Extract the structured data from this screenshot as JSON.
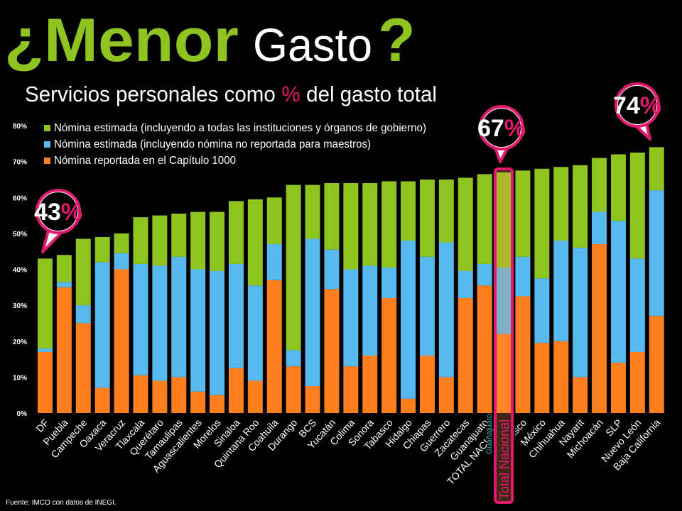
{
  "chart_data": {
    "type": "stacked_bar",
    "title": [
      "¿Menor",
      "Gasto",
      "?"
    ],
    "subtitle": [
      "Servicios personales como",
      "%",
      "del gasto total"
    ],
    "source": "Fuente: IMCO con datos de INEGI.",
    "categories": [
      "DF",
      "Puebla",
      "Campeche",
      "Oaxaca",
      "Veracruz",
      "Tlaxcala",
      "Querétaro",
      "Tamaulipas",
      "Aguascalientes",
      "Morelos",
      "Sinaloa",
      "Quintana Roo",
      "Coahuila",
      "Durango",
      "BCS",
      "Yucatán",
      "Colima",
      "Sonora",
      "Tabasco",
      "Hidalgo",
      "Chiapas",
      "Guerrero",
      "Zacatecas",
      "Guanajuato",
      "TOTAL NACIONAL",
      "Jalisco",
      "México",
      "Chihuahua",
      "Nayarit",
      "Michoacán",
      "SLP",
      "Nuevo León",
      "Baja California"
    ],
    "series": [
      {
        "name": "Nómina reportada en el Capítulo 1000",
        "color": "#ff7f1e",
        "values": [
          17,
          35,
          25,
          7,
          40,
          10.5,
          9,
          10,
          6,
          5,
          12.5,
          9,
          37,
          13,
          7.5,
          34.5,
          13,
          16,
          32,
          4,
          16,
          10,
          32,
          35.5,
          22,
          32.5,
          19.5,
          20,
          10,
          47,
          14,
          17,
          27
        ]
      },
      {
        "name": "Nómina estimada (incluyendo nómina no reportada para maestros)",
        "color": "#57b9ee",
        "values": [
          1,
          1.5,
          5,
          35,
          4.5,
          31,
          32,
          33.5,
          34,
          34.5,
          29,
          26.5,
          10,
          4.5,
          41,
          11,
          27,
          25,
          8.5,
          44,
          27.5,
          37.5,
          7.5,
          6,
          18.5,
          11,
          18,
          28,
          36,
          9,
          39.5,
          26,
          35
        ]
      },
      {
        "name": "Nómina estimada (incluyendo a todas las instituciones y órganos de gobierno)",
        "color": "#8fc320",
        "values": [
          25,
          7.5,
          18.5,
          7,
          5.5,
          13,
          14,
          12,
          16,
          16.5,
          17.5,
          24,
          13,
          46,
          15,
          18.5,
          24,
          23,
          24,
          16.5,
          21.5,
          17.5,
          26,
          25,
          26.5,
          24,
          30.5,
          20.5,
          23,
          15,
          18.5,
          29.5,
          12
        ]
      }
    ],
    "ylim": [
      0,
      80
    ],
    "yticks": [
      {
        "value": 0,
        "label": "0%"
      },
      {
        "value": 10,
        "label": "10%"
      },
      {
        "value": 20,
        "label": "20%"
      },
      {
        "value": 30,
        "label": "30%"
      },
      {
        "value": 40,
        "label": "40%"
      },
      {
        "value": 50,
        "label": "50%"
      },
      {
        "value": 60,
        "label": "60%"
      },
      {
        "value": 70,
        "label": "70%"
      },
      {
        "value": 80,
        "label": "80%"
      }
    ],
    "annotations": [
      {
        "value": 43,
        "label": "43%"
      },
      {
        "value": 67,
        "label": "67%"
      },
      {
        "value": 74,
        "label": "74%"
      }
    ],
    "highlight_labels": [
      "Guanajuato",
      "Total Nacional"
    ],
    "accent_color": "#e3196f"
  }
}
